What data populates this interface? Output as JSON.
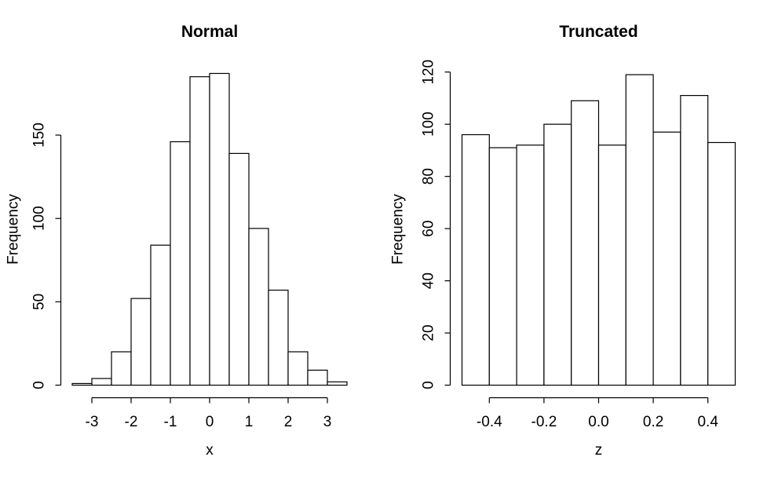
{
  "figure": {
    "kind": "R base graphics histogram panel, 1 row x 2 columns",
    "colors": {
      "background": "#ffffff",
      "stroke": "#000000",
      "bar_fill": "#ffffff"
    }
  },
  "chart_data": [
    {
      "type": "bar",
      "subtype": "histogram",
      "title": "Normal",
      "xlabel": "x",
      "ylabel": "Frequency",
      "bin_start": -3.5,
      "bin_width": 0.5,
      "counts": [
        1,
        4,
        20,
        52,
        84,
        146,
        185,
        187,
        139,
        94,
        57,
        20,
        9,
        2
      ],
      "total_n": 1000,
      "xlim": [
        -3.5,
        3.5
      ],
      "ylim": [
        0,
        187
      ],
      "grid": false,
      "legend": null,
      "x_ticks": [
        -3,
        -2,
        -1,
        0,
        1,
        2,
        3
      ],
      "x_tick_labels": [
        "-3",
        "-2",
        "-1",
        "0",
        "1",
        "2",
        "3"
      ],
      "y_ticks": [
        0,
        50,
        100,
        150
      ],
      "y_tick_labels": [
        "0",
        "50",
        "100",
        "150"
      ]
    },
    {
      "type": "bar",
      "subtype": "histogram",
      "title": "Truncated",
      "xlabel": "z",
      "ylabel": "Frequency",
      "bin_start": -0.5,
      "bin_width": 0.1,
      "counts": [
        96,
        91,
        92,
        100,
        109,
        92,
        119,
        97,
        111,
        93
      ],
      "total_n": 1000,
      "xlim": [
        -0.5,
        0.5
      ],
      "ylim": [
        0,
        120
      ],
      "grid": false,
      "legend": null,
      "x_ticks": [
        -0.4,
        -0.2,
        0.0,
        0.2,
        0.4
      ],
      "x_tick_labels": [
        "-0.4",
        "-0.2",
        "0.0",
        "0.2",
        "0.4"
      ],
      "y_ticks": [
        0,
        20,
        40,
        60,
        80,
        100,
        120
      ],
      "y_tick_labels": [
        "0",
        "20",
        "40",
        "60",
        "80",
        "100",
        "120"
      ]
    }
  ]
}
